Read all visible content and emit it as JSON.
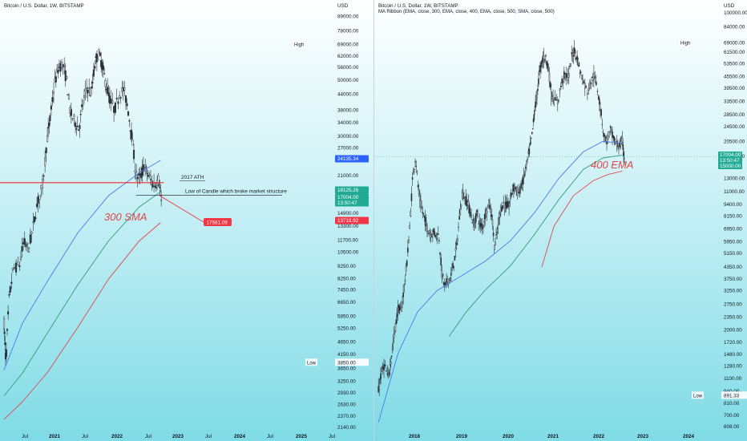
{
  "colors": {
    "sma_blue": "#4a7be8",
    "sma_teal": "#2e9b78",
    "sma_red": "#e04848",
    "ath_line": "#f02b2b",
    "badge_blue": "#2962ff",
    "badge_green": "#22ab94",
    "badge_red": "#f23645",
    "candle": "#2b2f38"
  },
  "chart_data": [
    {
      "type": "line",
      "title": "Bitcoin / U.S. Dollar, 1W, BITSTAMP",
      "y_scale": "log",
      "y_unit_label": "USD",
      "y_ticks": [
        "89000.00",
        "78000.00",
        "69000.00",
        "62000.00",
        "56000.00",
        "50000.00",
        "44000.00",
        "38000.00",
        "34000.00",
        "30000.00",
        "27000.00",
        "24000.00",
        "21000.00",
        "18700.00",
        "16600.00",
        "14900.00",
        "13300.00",
        "11700.00",
        "10500.00",
        "9250.00",
        "8250.00",
        "7450.00",
        "6650.00",
        "5850.00",
        "5250.00",
        "4650.00",
        "4150.00",
        "3650.00",
        "3250.00",
        "2930.00",
        "2630.00",
        "2370.00",
        "2140.00"
      ],
      "x_ticks": [
        {
          "label": "Jul",
          "bold": false
        },
        {
          "label": "2021",
          "bold": true
        },
        {
          "label": "Jul",
          "bold": false
        },
        {
          "label": "2022",
          "bold": true
        },
        {
          "label": "Jul",
          "bold": false
        },
        {
          "label": "2023",
          "bold": true
        },
        {
          "label": "Jul",
          "bold": false
        },
        {
          "label": "2024",
          "bold": true
        },
        {
          "label": "Jul",
          "bold": false
        },
        {
          "label": "2025",
          "bold": true
        },
        {
          "label": "Jul",
          "bold": false
        }
      ],
      "high_tag": {
        "label": "High",
        "value": "69000.00"
      },
      "low_tag": {
        "label": "Low",
        "value": "3850.00"
      },
      "price_badges": [
        {
          "value": "24135.34",
          "color": "blue"
        },
        {
          "value": "18125.26",
          "color": "green"
        },
        {
          "value": "17004.00",
          "color": "green"
        },
        {
          "value": "13:50:47",
          "color": "green"
        },
        {
          "value": "13718.92",
          "color": "red"
        },
        {
          "value": "17581.09",
          "color": "red"
        }
      ],
      "annotations": [
        "2017 ATH",
        "Low of Candle which broke market structure",
        "300 SMA"
      ],
      "levels": {
        "ath_2017": 19700,
        "structure_low": 17600
      },
      "close_price": 17004,
      "series": [
        {
          "ma": "SMA 300",
          "color": "#4a7be8",
          "points": [
            [
              2020.3,
              3600
            ],
            [
              2020.6,
              5500
            ],
            [
              2021.0,
              8000
            ],
            [
              2021.5,
              12500
            ],
            [
              2022.0,
              17500
            ],
            [
              2022.5,
              21500
            ],
            [
              2022.85,
              24135
            ]
          ]
        },
        {
          "ma": "SMA 400",
          "color": "#2e9b78",
          "points": [
            [
              2020.3,
              2850
            ],
            [
              2020.6,
              3500
            ],
            [
              2021.0,
              5000
            ],
            [
              2021.5,
              7800
            ],
            [
              2022.0,
              11600
            ],
            [
              2022.5,
              15800
            ],
            [
              2022.85,
              18125
            ]
          ]
        },
        {
          "ma": "SMA 500",
          "color": "#e04848",
          "points": [
            [
              2020.3,
              2300
            ],
            [
              2020.6,
              2700
            ],
            [
              2021.0,
              3500
            ],
            [
              2021.5,
              5300
            ],
            [
              2022.0,
              8200
            ],
            [
              2022.5,
              11600
            ],
            [
              2022.85,
              13719
            ]
          ]
        }
      ]
    },
    {
      "type": "line",
      "title": "Bitcoin / U.S. Dollar, 1W, BITSTAMP",
      "subtitle": "MA Ribbon (EMA, close, 300, EMA, close, 400, EMA, close, 500, SMA, close, 500)",
      "y_scale": "log",
      "y_unit_label": "USD",
      "y_ticks": [
        "100000.00",
        "84000.00",
        "69000.00",
        "61500.00",
        "53500.00",
        "45500.00",
        "39500.00",
        "33500.00",
        "28500.00",
        "24500.00",
        "20500.00",
        "17000.00",
        "13000.00",
        "11000.00",
        "9400.00",
        "8150.00",
        "6950.00",
        "5950.00",
        "5150.00",
        "4350.00",
        "3750.00",
        "3250.00",
        "2750.00",
        "2350.00",
        "2000.00",
        "1720.00",
        "1480.00",
        "1280.00",
        "1100.00",
        "940.00",
        "810.00",
        "700.00",
        "608.00"
      ],
      "x_ticks": [
        {
          "label": "2018",
          "bold": true
        },
        {
          "label": "2019",
          "bold": true
        },
        {
          "label": "2020",
          "bold": true
        },
        {
          "label": "2021",
          "bold": true
        },
        {
          "label": "2022",
          "bold": true
        },
        {
          "label": "2023",
          "bold": true
        },
        {
          "label": "2024",
          "bold": true
        }
      ],
      "high_tag": {
        "label": "High",
        "value": "69000.00"
      },
      "low_tag": {
        "label": "Low",
        "value": "891.33"
      },
      "price_badges": [
        {
          "value": "17004.00",
          "color": "green"
        },
        {
          "value": "13:50:47",
          "color": "green"
        },
        {
          "value": "15000.00",
          "color": "green"
        }
      ],
      "annotations": [
        "400 EMA"
      ],
      "close_price": 17004,
      "series": [
        {
          "ma": "EMA 300",
          "color": "#4a7be8",
          "points": [
            [
              2017.8,
              640
            ],
            [
              2018.2,
              1500
            ],
            [
              2018.6,
              2500
            ],
            [
              2019.0,
              3250
            ],
            [
              2019.5,
              3900
            ],
            [
              2020.0,
              4700
            ],
            [
              2020.5,
              6000
            ],
            [
              2021.0,
              8500
            ],
            [
              2021.5,
              13000
            ],
            [
              2022.0,
              18000
            ],
            [
              2022.4,
              20500
            ],
            [
              2022.8,
              20000
            ]
          ]
        },
        {
          "ma": "EMA 400",
          "color": "#2e9b78",
          "points": [
            [
              2019.25,
              1850
            ],
            [
              2019.6,
              2500
            ],
            [
              2020.0,
              3300
            ],
            [
              2020.5,
              4400
            ],
            [
              2021.0,
              6500
            ],
            [
              2021.5,
              10000
            ],
            [
              2022.0,
              14500
            ],
            [
              2022.4,
              16700
            ],
            [
              2022.8,
              17300
            ]
          ]
        },
        {
          "ma": "SMA 500",
          "color": "#e04848",
          "points": [
            [
              2021.15,
              4350
            ],
            [
              2021.4,
              7200
            ],
            [
              2021.8,
              10500
            ],
            [
              2022.2,
              12600
            ],
            [
              2022.5,
              13600
            ],
            [
              2022.8,
              14200
            ]
          ]
        }
      ]
    }
  ]
}
